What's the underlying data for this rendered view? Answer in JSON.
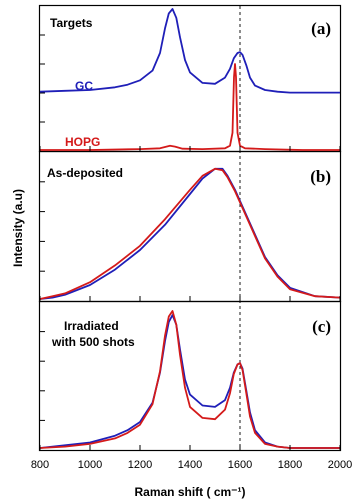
{
  "chart_data": {
    "type": "line",
    "xlabel": "Raman shift ( cm⁻¹)",
    "ylabel": "Intensity (a.u)",
    "xlim": [
      800,
      2000
    ],
    "xticks": [
      800,
      1000,
      1200,
      1400,
      1600,
      1800,
      2000
    ],
    "reference_line_x": 1600,
    "colors": {
      "blue": "#1f1fb8",
      "red": "#d41a1a"
    },
    "panels": [
      {
        "letter": "(a)",
        "title": "Targets",
        "series": [
          {
            "name": "GC",
            "color": "blue",
            "x": [
              800,
              900,
              1000,
              1100,
              1150,
              1200,
              1250,
              1280,
              1300,
              1315,
              1330,
              1345,
              1360,
              1380,
              1400,
              1450,
              1500,
              1540,
              1560,
              1575,
              1590,
              1600,
              1610,
              1625,
              1640,
              1660,
              1700,
              1750,
              1800,
              1900,
              2000
            ],
            "y": [
              0.06,
              0.07,
              0.08,
              0.11,
              0.14,
              0.19,
              0.3,
              0.5,
              0.78,
              0.95,
              1.0,
              0.9,
              0.68,
              0.42,
              0.28,
              0.16,
              0.15,
              0.22,
              0.32,
              0.44,
              0.5,
              0.51,
              0.48,
              0.36,
              0.22,
              0.13,
              0.08,
              0.06,
              0.05,
              0.05,
              0.05
            ]
          },
          {
            "name": "HOPG",
            "color": "red",
            "x": [
              800,
              1000,
              1200,
              1280,
              1320,
              1340,
              1370,
              1450,
              1540,
              1560,
              1570,
              1576,
              1580,
              1584,
              1590,
              1600,
              1620,
              1700,
              1850,
              2000
            ],
            "y": [
              0.0,
              0.0,
              0.01,
              0.02,
              0.05,
              0.04,
              0.015,
              0.01,
              0.02,
              0.05,
              0.2,
              0.85,
              1.0,
              0.85,
              0.2,
              0.05,
              0.02,
              0.01,
              0.0,
              0.0
            ]
          }
        ]
      },
      {
        "letter": "(b)",
        "title": "As-deposited",
        "series": [
          {
            "name": "",
            "color": "blue",
            "x": [
              800,
              850,
              900,
              1000,
              1100,
              1200,
              1300,
              1400,
              1450,
              1500,
              1530,
              1550,
              1580,
              1600,
              1650,
              1700,
              1750,
              1800,
              1900,
              2000
            ],
            "y": [
              0.0,
              0.01,
              0.03,
              0.1,
              0.21,
              0.35,
              0.53,
              0.75,
              0.86,
              0.93,
              0.93,
              0.88,
              0.78,
              0.7,
              0.5,
              0.3,
              0.17,
              0.08,
              0.02,
              0.01
            ]
          },
          {
            "name": "",
            "color": "red",
            "x": [
              800,
              850,
              900,
              1000,
              1100,
              1200,
              1300,
              1400,
              1450,
              1500,
              1530,
              1550,
              1580,
              1600,
              1650,
              1700,
              1750,
              1800,
              1900,
              2000
            ],
            "y": [
              0.0,
              0.02,
              0.04,
              0.12,
              0.24,
              0.38,
              0.57,
              0.78,
              0.88,
              0.93,
              0.92,
              0.87,
              0.77,
              0.69,
              0.49,
              0.29,
              0.16,
              0.07,
              0.02,
              0.01
            ]
          }
        ]
      },
      {
        "letter": "(c)",
        "title": "Irradiated\nwith 500 shots",
        "series": [
          {
            "name": "",
            "color": "blue",
            "x": [
              800,
              900,
              1000,
              1100,
              1150,
              1200,
              1250,
              1280,
              1300,
              1315,
              1330,
              1345,
              1360,
              1380,
              1400,
              1450,
              1500,
              1540,
              1560,
              1575,
              1590,
              1600,
              1610,
              1625,
              1640,
              1660,
              1700,
              1750,
              1800,
              1900,
              2000
            ],
            "y": [
              0.0,
              0.02,
              0.04,
              0.09,
              0.13,
              0.19,
              0.33,
              0.55,
              0.78,
              0.92,
              0.97,
              0.9,
              0.72,
              0.5,
              0.39,
              0.31,
              0.3,
              0.35,
              0.44,
              0.55,
              0.61,
              0.62,
              0.58,
              0.42,
              0.26,
              0.13,
              0.04,
              0.01,
              0.0,
              0.0,
              0.0
            ]
          },
          {
            "name": "",
            "color": "red",
            "x": [
              800,
              900,
              1000,
              1100,
              1150,
              1200,
              1250,
              1280,
              1300,
              1315,
              1330,
              1345,
              1360,
              1380,
              1400,
              1450,
              1500,
              1540,
              1560,
              1575,
              1590,
              1600,
              1610,
              1625,
              1640,
              1660,
              1700,
              1750,
              1800,
              1900,
              2000
            ],
            "y": [
              0.0,
              0.01,
              0.03,
              0.07,
              0.11,
              0.17,
              0.32,
              0.56,
              0.82,
              0.96,
              1.0,
              0.9,
              0.68,
              0.44,
              0.3,
              0.22,
              0.21,
              0.28,
              0.4,
              0.54,
              0.61,
              0.62,
              0.57,
              0.4,
              0.23,
              0.11,
              0.03,
              0.01,
              0.0,
              0.0,
              0.0
            ]
          }
        ]
      }
    ]
  }
}
